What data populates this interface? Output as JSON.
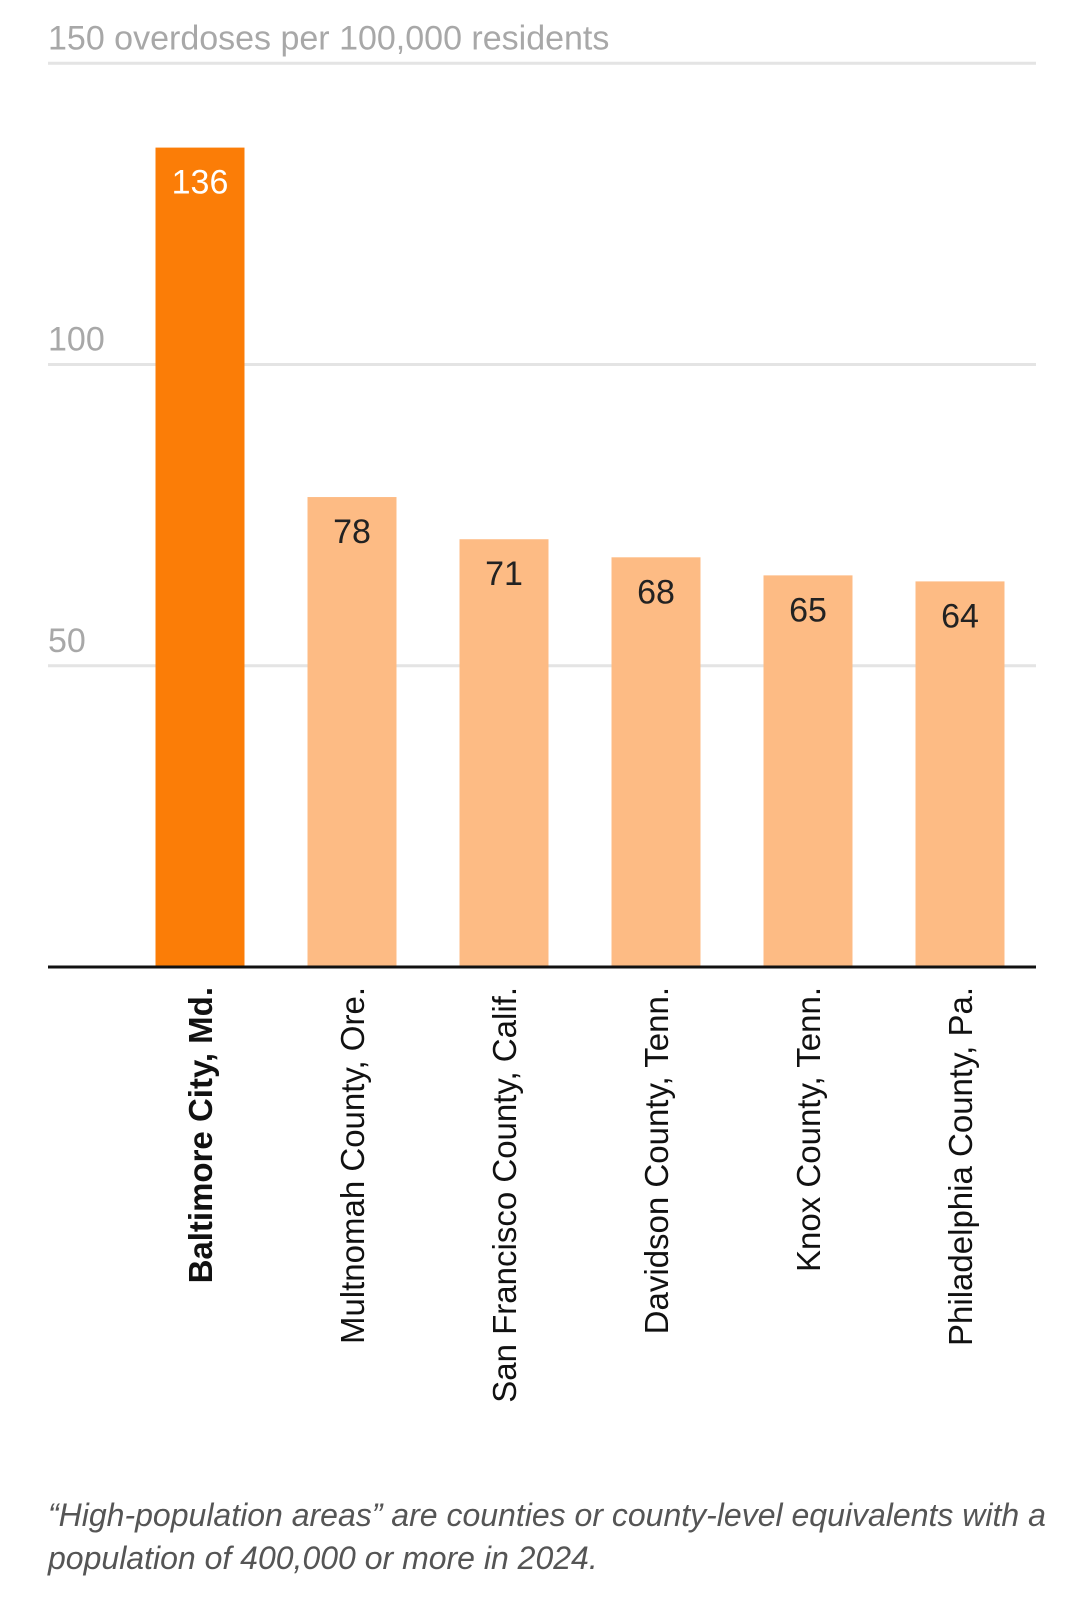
{
  "chart_data": {
    "type": "bar",
    "categories": [
      "Baltimore City, Md.",
      "Multnomah County, Ore.",
      "San Francisco County, Calif.",
      "Davidson County, Tenn.",
      "Knox County, Tenn.",
      "Philadelphia County, Pa."
    ],
    "values": [
      136,
      78,
      71,
      68,
      65,
      64
    ],
    "highlight_index": 0,
    "yticks": [
      {
        "value": 150,
        "label": "150 overdoses per 100,000 residents"
      },
      {
        "value": 100,
        "label": "100"
      },
      {
        "value": 50,
        "label": "50"
      }
    ],
    "ylim": [
      0,
      150
    ],
    "grid": true,
    "colors": {
      "highlight": "#fb7d07",
      "bar": "#fdbb84",
      "grid": "#e4e4e4",
      "axis": "#111111",
      "tick_label": "#a8a8a8",
      "highlight_label": "#ffffff",
      "bar_label": "#222222"
    },
    "footnote": "“High-population areas” are counties or county-level equivalents with a population of 400,000 or more in 2024."
  }
}
